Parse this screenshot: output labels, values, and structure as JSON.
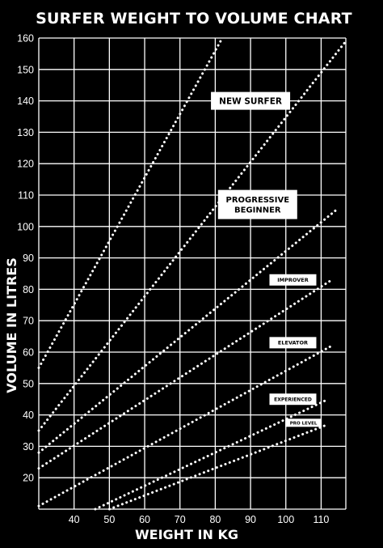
{
  "chart_data": {
    "type": "line",
    "title": "SURFER WEIGHT TO VOLUME CHART",
    "xlabel": "WEIGHT IN KG",
    "ylabel": "VOLUME IN LITRES",
    "xlim": [
      30,
      117
    ],
    "ylim": [
      10,
      160
    ],
    "x_ticks": [
      40,
      50,
      60,
      70,
      80,
      90,
      100,
      110
    ],
    "y_ticks": [
      20,
      30,
      40,
      50,
      60,
      70,
      80,
      90,
      100,
      110,
      120,
      130,
      140,
      150,
      160
    ],
    "grid": true,
    "series": [
      {
        "name": "NEW SURFER",
        "points": [
          [
            30,
            55
          ],
          [
            82,
            160
          ]
        ]
      },
      {
        "name": "PROGRESSIVE BEGINNER",
        "points": [
          [
            30,
            35
          ],
          [
            117,
            159
          ]
        ]
      },
      {
        "name": "IMPROVER",
        "points": [
          [
            30,
            28
          ],
          [
            114,
            105
          ]
        ]
      },
      {
        "name": "ELEVATOR",
        "points": [
          [
            30,
            23
          ],
          [
            113,
            83
          ]
        ]
      },
      {
        "name": "EXPERIENCED",
        "points": [
          [
            30,
            11
          ],
          [
            113,
            62
          ]
        ]
      },
      {
        "name": "PRO LEVEL",
        "points": [
          [
            46,
            10
          ],
          [
            112,
            45
          ]
        ]
      },
      {
        "name": "",
        "points": [
          [
            50,
            10
          ],
          [
            112,
            37
          ]
        ]
      }
    ]
  }
}
